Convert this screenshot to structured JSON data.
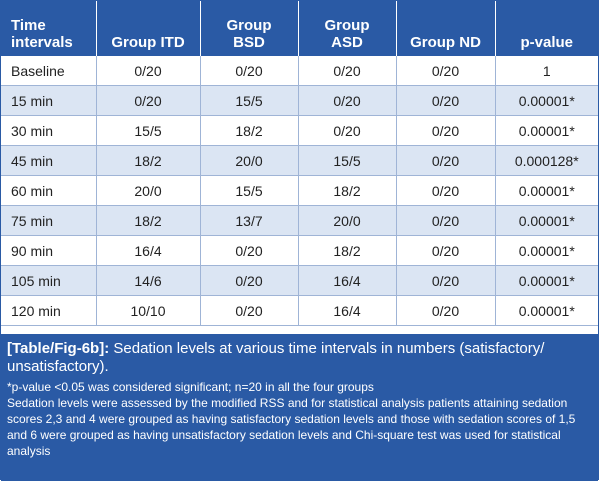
{
  "table": {
    "headers": [
      "Time\nintervals",
      "Group ITD",
      "Group\nBSD",
      "Group\nASD",
      "Group ND",
      "p-value"
    ],
    "rows": [
      [
        "Baseline",
        "0/20",
        "0/20",
        "0/20",
        "0/20",
        "1"
      ],
      [
        "15 min",
        "0/20",
        "15/5",
        "0/20",
        "0/20",
        "0.00001*"
      ],
      [
        "30 min",
        "15/5",
        "18/2",
        "0/20",
        "0/20",
        "0.00001*"
      ],
      [
        "45 min",
        "18/2",
        "20/0",
        "15/5",
        "0/20",
        "0.000128*"
      ],
      [
        "60 min",
        "20/0",
        "15/5",
        "18/2",
        "0/20",
        "0.00001*"
      ],
      [
        "75 min",
        "18/2",
        "13/7",
        "20/0",
        "0/20",
        "0.00001*"
      ],
      [
        "90 min",
        "16/4",
        "0/20",
        "18/2",
        "0/20",
        "0.00001*"
      ],
      [
        "105 min",
        "14/6",
        "0/20",
        "16/4",
        "0/20",
        "0.00001*"
      ],
      [
        "120 min",
        "10/10",
        "0/20",
        "16/4",
        "0/20",
        "0.00001*"
      ]
    ]
  },
  "caption": {
    "label": "[Table/Fig-6b]:",
    "title": " Sedation levels at various time intervals in numbers (satisfactory/ unsatisfactory).",
    "note1": "*p-value <0.05 was considered significant; n=20 in all the four groups",
    "note2": "Sedation levels were assessed by the modified RSS and for statistical analysis patients attaining sedation scores 2,3 and 4 were grouped as having satisfactory sedation levels and those with sedation scores of 1,5 and 6 were grouped as having unsatisfactory sedation levels and Chi-square test was used for statistical analysis"
  }
}
